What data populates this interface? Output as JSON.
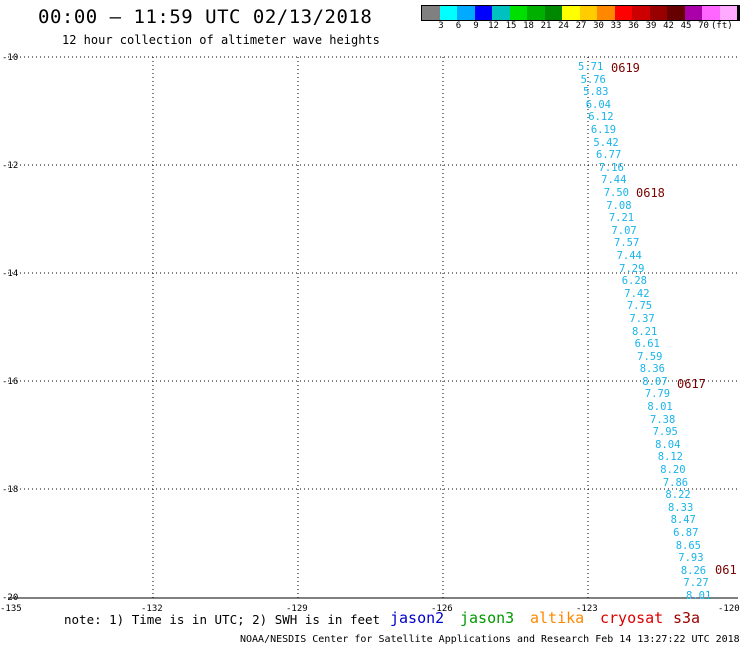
{
  "header": {
    "title": "00:00 – 11:59 UTC 02/13/2018",
    "subtitle": "12 hour collection of altimeter wave heights"
  },
  "colorbar": {
    "colors": [
      "#808080",
      "#00ffff",
      "#00aaff",
      "#0000ff",
      "#00c0c0",
      "#00e000",
      "#00b000",
      "#008800",
      "#ffff00",
      "#ffcc00",
      "#ff8800",
      "#ff0000",
      "#cc0000",
      "#990000",
      "#660000",
      "#aa00aa",
      "#ff66ff",
      "#ffaaff",
      "#000000"
    ],
    "labels": [
      "3",
      "6",
      "9",
      "12",
      "15",
      "18",
      "21",
      "24",
      "27",
      "30",
      "33",
      "36",
      "39",
      "42",
      "45",
      "70",
      "(ft)"
    ]
  },
  "map": {
    "lat_labels": [
      "-10",
      "-12",
      "-14",
      "-16",
      "-18",
      "-20"
    ],
    "lon_labels": [
      "-135",
      "-132",
      "-129",
      "-126",
      "-123",
      "-120"
    ]
  },
  "swh_values": [
    "5.71",
    "5.76",
    "5.83",
    "6.04",
    "6.12",
    "6.19",
    "5.42",
    "6.77",
    "7.16",
    "7.44",
    "7.50",
    "7.08",
    "7.21",
    "7.07",
    "7.57",
    "7.44",
    "7.29",
    "6.28",
    "7.42",
    "7.75",
    "7.37",
    "8.21",
    "6.61",
    "7.59",
    "8.36",
    "8.07",
    "7.79",
    "8.01",
    "7.38",
    "7.95",
    "8.04",
    "8.12",
    "8.20",
    "7.86",
    "8.22",
    "8.33",
    "8.47",
    "6.87",
    "8.65",
    "7.93",
    "8.26",
    "7.27",
    "8.01"
  ],
  "pass_times": [
    "0619",
    "0618",
    "0617",
    "061"
  ],
  "footer": {
    "note": "note: 1) Time is in UTC; 2) SWH is in feet",
    "satellites": [
      {
        "name": "jason2",
        "color": "#0000cc"
      },
      {
        "name": "jason3",
        "color": "#009900"
      },
      {
        "name": "altika",
        "color": "#ff8800"
      },
      {
        "name": "cryosat",
        "color": "#dd0000"
      },
      {
        "name": "s3a",
        "color": "#990000"
      }
    ],
    "credit": "NOAA/NESDIS Center for Satellite Applications and Research    Feb 14 13:27:22 UTC 2018"
  }
}
